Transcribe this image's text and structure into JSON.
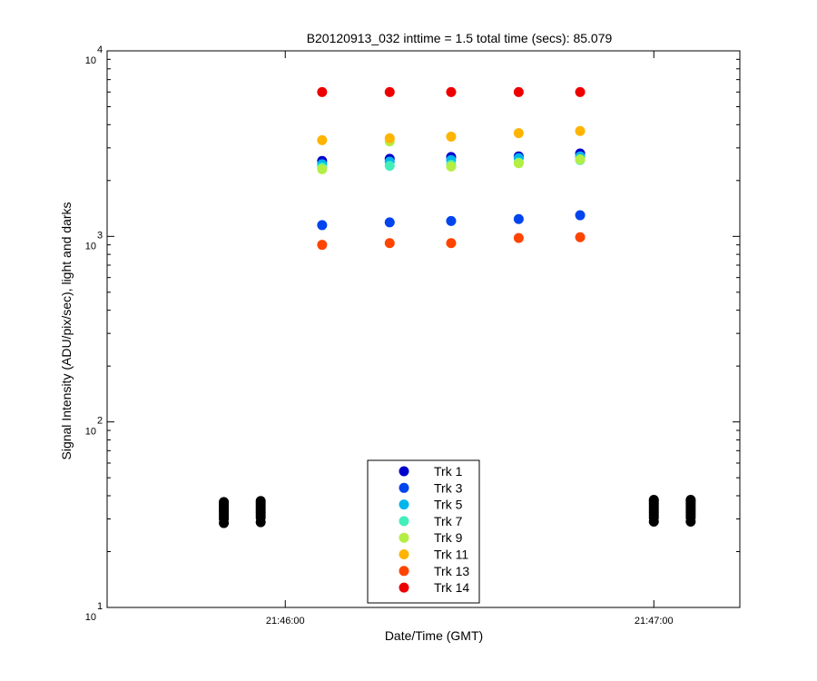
{
  "chart_data": {
    "type": "scatter",
    "title": "B20120913_032 inttime = 1.5 total time (secs): 85.079",
    "xlabel": "Date/Time (GMT)",
    "ylabel": "Signal Intensity (ADU/pix/sec), light and darks",
    "yscale": "log",
    "ylim": [
      10,
      10000
    ],
    "xlim": [
      "21:45:31",
      "21:47:14"
    ],
    "x_ticks": [
      "21:46:00",
      "21:47:00"
    ],
    "y_ticks": [
      {
        "base": "10",
        "exp": "1"
      },
      {
        "base": "10",
        "exp": "2"
      },
      {
        "base": "10",
        "exp": "3"
      },
      {
        "base": "10",
        "exp": "4"
      }
    ],
    "grid": false,
    "legend_position": "bottom-center",
    "light_x": [
      "21:46:06",
      "21:46:17",
      "21:46:27",
      "21:46:38",
      "21:46:48"
    ],
    "series": [
      {
        "name": "Trk 1",
        "color": "#0000cc",
        "values": [
          2550,
          2620,
          2680,
          2700,
          2800
        ]
      },
      {
        "name": "Trk 3",
        "color": "#0044ee",
        "values": [
          1150,
          1190,
          1210,
          1240,
          1300
        ]
      },
      {
        "name": "Trk 5",
        "color": "#00b4ee",
        "values": [
          2450,
          2530,
          2580,
          2640,
          2700
        ]
      },
      {
        "name": "Trk 7",
        "color": "#44eebb",
        "values": [
          2350,
          2400,
          2430,
          2500,
          2580
        ]
      },
      {
        "name": "Trk 9",
        "color": "#b4ee44",
        "values": [
          2300,
          3250,
          2380,
          2480,
          2600
        ]
      },
      {
        "name": "Trk 11",
        "color": "#ffb400",
        "values": [
          3300,
          3380,
          3450,
          3600,
          3700
        ]
      },
      {
        "name": "Trk 13",
        "color": "#ff4400",
        "values": [
          900,
          920,
          920,
          980,
          990
        ]
      },
      {
        "name": "Trk 14",
        "color": "#ee0000",
        "values": [
          6000,
          6000,
          6000,
          6000,
          6000
        ]
      }
    ],
    "darks": {
      "color": "#000000",
      "groups": [
        {
          "x": "21:45:50",
          "values": [
            28.5,
            30,
            31,
            32,
            33,
            34,
            35,
            36,
            37
          ]
        },
        {
          "x": "21:45:56",
          "values": [
            28.8,
            30.5,
            31.5,
            32.5,
            33.5,
            34.5,
            35.5,
            36.5,
            37.5
          ]
        },
        {
          "x": "21:47:00",
          "values": [
            29,
            30.5,
            31.5,
            32.5,
            33.5,
            34.5,
            35.5,
            36.5,
            37.5,
            38
          ]
        },
        {
          "x": "21:47:06",
          "values": [
            29,
            30.5,
            31.5,
            32.5,
            33.5,
            34.5,
            35.5,
            36.5,
            37.5,
            38
          ]
        }
      ]
    }
  }
}
